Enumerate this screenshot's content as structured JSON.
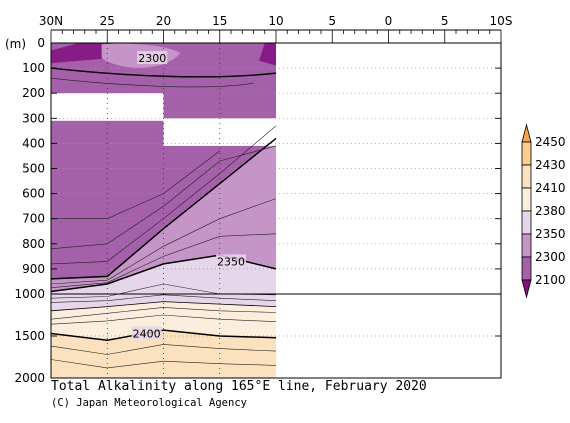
{
  "chart_data": {
    "type": "heatmap",
    "title": "Total Alkalinity along 165°E line, February 2020",
    "credit": "(C) Japan Meteorological Agency",
    "ylabel": "(m)",
    "x_ticks": [
      "30N",
      "25",
      "20",
      "15",
      "10",
      "5",
      "0",
      "5",
      "10S"
    ],
    "x_tick_values": [
      30,
      25,
      20,
      15,
      10,
      5,
      0,
      -5,
      -10
    ],
    "xlim": [
      30,
      -10
    ],
    "y_ticks_upper": [
      "0",
      "100",
      "200",
      "300",
      "400",
      "500",
      "600",
      "700",
      "800",
      "900",
      "1000"
    ],
    "y_ticks_lower": [
      "1500",
      "2000"
    ],
    "ylim": [
      0,
      2000
    ],
    "y_scale_break": 1000,
    "data_extent_lat": [
      30,
      10
    ],
    "missing_regions": [
      {
        "lat": [
          30,
          20
        ],
        "depth": [
          200,
          310
        ]
      },
      {
        "lat": [
          20,
          10
        ],
        "depth": [
          300,
          410
        ]
      }
    ],
    "colorbar": {
      "levels": [
        "2450",
        "2430",
        "2410",
        "2380",
        "2350",
        "2300",
        "2100"
      ],
      "colors": [
        "#fbcb90",
        "#fbe1bd",
        "#fbeedd",
        "#e6d6ea",
        "#c695c8",
        "#a460a8",
        "#881c86"
      ],
      "tip_top": "#f4a648",
      "tip_bottom": "#870d80"
    },
    "contour_labels": [
      {
        "text": "2300",
        "lat": 21,
        "depth": 60
      },
      {
        "text": "2350",
        "lat": 14,
        "depth": 870
      },
      {
        "text": "2400",
        "lat": 21.5,
        "depth": 1470
      }
    ],
    "profiles": [
      {
        "name": "2300",
        "lat": [
          30,
          25,
          20,
          15,
          10
        ],
        "depth": [
          940,
          930,
          740,
          560,
          380
        ]
      },
      {
        "name": "2350",
        "lat": [
          30,
          25,
          20,
          15,
          10
        ],
        "depth": [
          990,
          960,
          880,
          845,
          900
        ]
      },
      {
        "name": "2380",
        "lat": [
          30,
          25,
          20,
          15,
          10
        ],
        "depth": [
          1200,
          1150,
          1090,
          1120,
          1150
        ]
      },
      {
        "name": "2400",
        "lat": [
          30,
          25,
          20,
          15,
          10
        ],
        "depth": [
          1470,
          1550,
          1430,
          1500,
          1520
        ]
      }
    ]
  }
}
